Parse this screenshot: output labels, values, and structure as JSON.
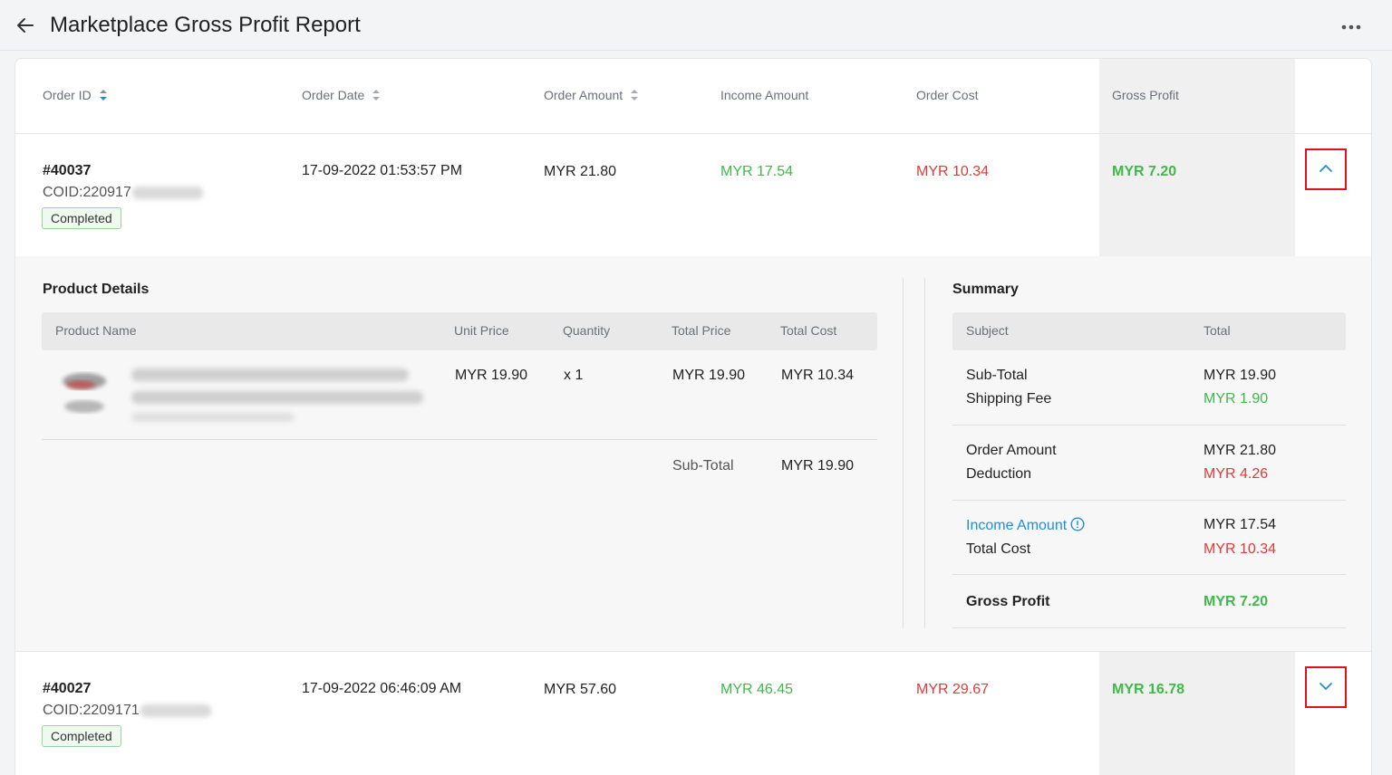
{
  "header": {
    "title": "Marketplace Gross Profit Report"
  },
  "table": {
    "columns": {
      "order_id": "Order ID",
      "order_date": "Order Date",
      "order_amount": "Order Amount",
      "income_amount": "Income Amount",
      "order_cost": "Order Cost",
      "gross_profit": "Gross Profit"
    },
    "rows": [
      {
        "order_id": "#40037",
        "coid": "COID:220917",
        "status": "Completed",
        "order_date": "17-09-2022 01:53:57 PM",
        "order_amount": "MYR 21.80",
        "income_amount": "MYR 17.54",
        "order_cost": "MYR 10.34",
        "gross_profit": "MYR 7.20",
        "expanded": true
      },
      {
        "order_id": "#40027",
        "coid": "COID:2209171",
        "status": "Completed",
        "order_date": "17-09-2022 06:46:09 AM",
        "order_amount": "MYR 57.60",
        "income_amount": "MYR 46.45",
        "order_cost": "MYR 29.67",
        "gross_profit": "MYR 16.78",
        "expanded": false
      }
    ]
  },
  "product_details": {
    "title": "Product Details",
    "columns": {
      "product_name": "Product Name",
      "unit_price": "Unit Price",
      "quantity": "Quantity",
      "total_price": "Total Price",
      "total_cost": "Total Cost"
    },
    "item": {
      "unit_price": "MYR 19.90",
      "quantity": "x 1",
      "total_price": "MYR 19.90",
      "total_cost": "MYR 10.34"
    },
    "subtotal_label": "Sub-Total",
    "subtotal_value": "MYR 19.90"
  },
  "summary": {
    "title": "Summary",
    "columns": {
      "subject": "Subject",
      "total": "Total"
    },
    "sub_total_label": "Sub-Total",
    "sub_total_value": "MYR 19.90",
    "shipping_fee_label": "Shipping Fee",
    "shipping_fee_value": "MYR 1.90",
    "order_amount_label": "Order Amount",
    "order_amount_value": "MYR 21.80",
    "deduction_label": "Deduction",
    "deduction_value": "MYR 4.26",
    "income_amount_label": "Income Amount",
    "income_amount_value": "MYR 17.54",
    "total_cost_label": "Total Cost",
    "total_cost_value": "MYR 10.34",
    "gross_profit_label": "Gross Profit",
    "gross_profit_value": "MYR 7.20"
  },
  "colors": {
    "positive": "#3fb94a",
    "negative": "#e03a3a",
    "link": "#1e8de3",
    "highlight_border": "#e0101e"
  }
}
